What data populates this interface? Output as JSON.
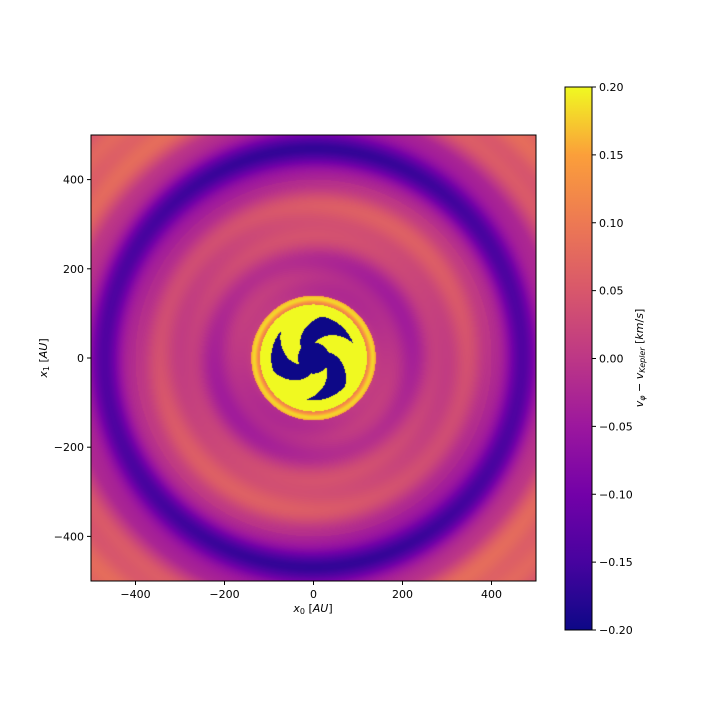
{
  "chart_data": {
    "type": "heatmap",
    "title": "",
    "xlabel": "x_0 [AU]",
    "ylabel": "x_1 [AU]",
    "xlim": [
      -500,
      500
    ],
    "ylim": [
      -500,
      500
    ],
    "xticks": [
      -400,
      -200,
      0,
      200,
      400
    ],
    "yticks": [
      -400,
      -200,
      0,
      200,
      400
    ],
    "xtick_labels": [
      "−400",
      "−200",
      "0",
      "200",
      "400"
    ],
    "ytick_labels": [
      "−400",
      "−200",
      "0",
      "200",
      "400"
    ],
    "colormap": "plasma",
    "colorbar": {
      "label": "v_φ − v_Kepler [km/s]",
      "range": [
        -0.2,
        0.2
      ],
      "ticks": [
        0.2,
        0.15,
        0.1,
        0.05,
        0.0,
        -0.05,
        -0.1,
        -0.15,
        -0.2
      ],
      "tick_labels": [
        "0.20",
        "0.15",
        "0.10",
        "0.05",
        "0.00",
        "−0.05",
        "−0.10",
        "−0.15",
        "−0.20"
      ],
      "placement": "right"
    },
    "grid": false
  }
}
